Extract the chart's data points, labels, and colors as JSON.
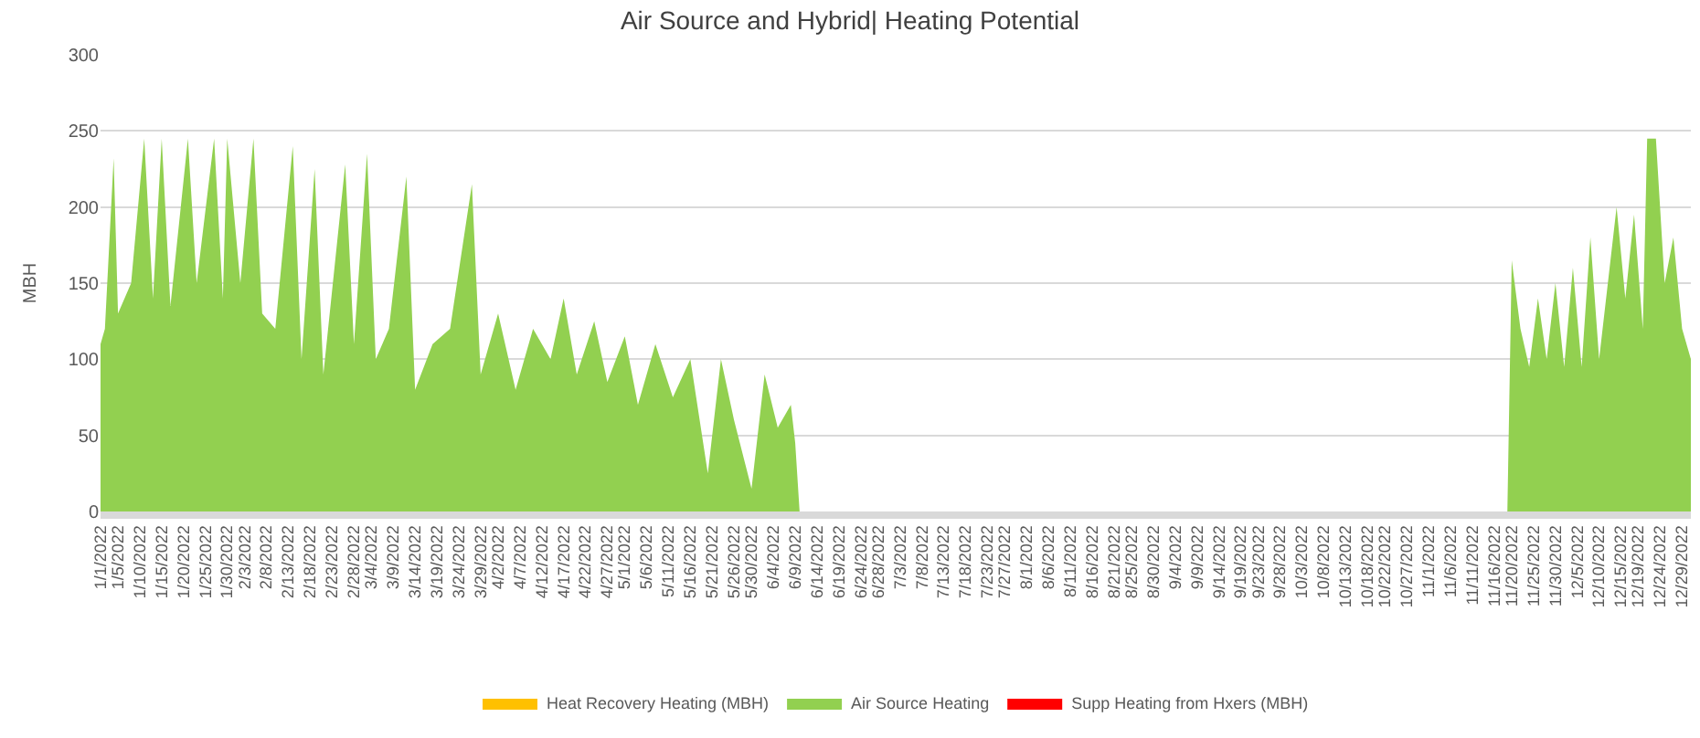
{
  "chart_data": {
    "type": "area",
    "title": "Air Source and Hybrid| Heating Potential",
    "ylabel": "MBH",
    "x": [
      "2022-01-01",
      "2022-01-02",
      "2022-01-04",
      "2022-01-05",
      "2022-01-08",
      "2022-01-11",
      "2022-01-13",
      "2022-01-15",
      "2022-01-17",
      "2022-01-21",
      "2022-01-23",
      "2022-01-27",
      "2022-01-29",
      "2022-01-30",
      "2022-02-02",
      "2022-02-05",
      "2022-02-07",
      "2022-02-10",
      "2022-02-14",
      "2022-02-16",
      "2022-02-19",
      "2022-02-21",
      "2022-02-26",
      "2022-02-28",
      "2022-03-03",
      "2022-03-05",
      "2022-03-08",
      "2022-03-12",
      "2022-03-14",
      "2022-03-18",
      "2022-03-22",
      "2022-03-27",
      "2022-03-29",
      "2022-04-02",
      "2022-04-06",
      "2022-04-10",
      "2022-04-14",
      "2022-04-17",
      "2022-04-20",
      "2022-04-24",
      "2022-04-27",
      "2022-05-01",
      "2022-05-04",
      "2022-05-08",
      "2022-05-12",
      "2022-05-16",
      "2022-05-20",
      "2022-05-23",
      "2022-05-26",
      "2022-05-30",
      "2022-06-02",
      "2022-06-05",
      "2022-06-08",
      "2022-06-09",
      "2022-06-10",
      "2022-11-19",
      "2022-11-20",
      "2022-11-22",
      "2022-11-24",
      "2022-11-26",
      "2022-11-28",
      "2022-11-30",
      "2022-12-02",
      "2022-12-04",
      "2022-12-06",
      "2022-12-08",
      "2022-12-10",
      "2022-12-12",
      "2022-12-14",
      "2022-12-16",
      "2022-12-18",
      "2022-12-20",
      "2022-12-21",
      "2022-12-23",
      "2022-12-25",
      "2022-12-27",
      "2022-12-29",
      "2022-12-31"
    ],
    "series": [
      {
        "name": "Heat Recovery Heating (MBH)",
        "color": "#ffc000",
        "values": [
          null,
          null,
          null,
          null,
          null,
          null,
          null,
          null,
          null,
          null,
          null,
          null,
          null,
          null,
          null,
          null,
          null,
          null,
          null,
          null,
          null,
          null,
          null,
          null,
          null,
          null,
          null,
          null,
          null,
          null,
          null,
          null,
          null,
          null,
          null,
          null,
          null,
          null,
          null,
          null,
          null,
          null,
          null,
          null,
          null,
          null,
          null,
          null,
          null,
          null,
          null,
          null,
          null,
          null,
          null,
          null,
          null,
          null,
          null,
          null,
          null,
          null,
          null,
          null,
          null,
          null,
          null,
          null,
          null,
          null,
          null,
          null,
          null,
          null,
          null,
          null,
          null,
          null
        ]
      },
      {
        "name": "Air Source Heating",
        "color": "#92d050",
        "values": [
          110,
          120,
          232,
          130,
          150,
          245,
          140,
          245,
          135,
          245,
          150,
          245,
          140,
          245,
          150,
          245,
          130,
          120,
          240,
          100,
          225,
          90,
          228,
          110,
          235,
          100,
          120,
          220,
          80,
          110,
          120,
          215,
          90,
          130,
          80,
          120,
          100,
          140,
          90,
          125,
          85,
          115,
          70,
          110,
          75,
          100,
          25,
          100,
          60,
          15,
          90,
          55,
          70,
          45,
          0,
          0,
          165,
          120,
          95,
          140,
          100,
          150,
          95,
          160,
          95,
          180,
          100,
          150,
          200,
          140,
          195,
          120,
          245,
          245,
          150,
          180,
          120,
          100
        ]
      },
      {
        "name": "Supp Heating from Hxers (MBH)",
        "color": "#ff0000",
        "values": [
          null,
          null,
          null,
          null,
          null,
          null,
          null,
          null,
          null,
          null,
          null,
          null,
          null,
          null,
          null,
          null,
          null,
          null,
          null,
          null,
          null,
          null,
          null,
          null,
          null,
          null,
          null,
          null,
          null,
          null,
          null,
          null,
          null,
          null,
          null,
          null,
          null,
          null,
          null,
          null,
          null,
          null,
          null,
          null,
          null,
          null,
          null,
          null,
          null,
          null,
          null,
          null,
          null,
          null,
          null,
          null,
          null,
          null,
          null,
          null,
          null,
          null,
          null,
          null,
          null,
          null,
          null,
          null,
          null,
          null,
          null,
          null,
          null,
          null,
          null,
          null,
          null,
          null
        ]
      }
    ],
    "ylim": [
      0,
      300
    ],
    "yticks": [
      0,
      50,
      100,
      150,
      200,
      250,
      300
    ],
    "grid": "y",
    "legend": "bottom",
    "xlim": [
      "2022-01-01",
      "2022-12-31"
    ],
    "xticks": [
      {
        "value": "2022-01-01",
        "label": "1/1/2022"
      },
      {
        "value": "2022-01-05",
        "label": "1/5/2022"
      },
      {
        "value": "2022-01-10",
        "label": "1/10/2022"
      },
      {
        "value": "2022-01-15",
        "label": "1/15/2022"
      },
      {
        "value": "2022-01-20",
        "label": "1/20/2022"
      },
      {
        "value": "2022-01-25",
        "label": "1/25/2022"
      },
      {
        "value": "2022-01-30",
        "label": "1/30/2022"
      },
      {
        "value": "2022-02-03",
        "label": "2/3/2022"
      },
      {
        "value": "2022-02-08",
        "label": "2/8/2022"
      },
      {
        "value": "2022-02-13",
        "label": "2/13/2022"
      },
      {
        "value": "2022-02-18",
        "label": "2/18/2022"
      },
      {
        "value": "2022-02-23",
        "label": "2/23/2022"
      },
      {
        "value": "2022-02-28",
        "label": "2/28/2022"
      },
      {
        "value": "2022-03-04",
        "label": "3/4/2022"
      },
      {
        "value": "2022-03-09",
        "label": "3/9/2022"
      },
      {
        "value": "2022-03-14",
        "label": "3/14/2022"
      },
      {
        "value": "2022-03-19",
        "label": "3/19/2022"
      },
      {
        "value": "2022-03-24",
        "label": "3/24/2022"
      },
      {
        "value": "2022-03-29",
        "label": "3/29/2022"
      },
      {
        "value": "2022-04-02",
        "label": "4/2/2022"
      },
      {
        "value": "2022-04-07",
        "label": "4/7/2022"
      },
      {
        "value": "2022-04-12",
        "label": "4/12/2022"
      },
      {
        "value": "2022-04-17",
        "label": "4/17/2022"
      },
      {
        "value": "2022-04-22",
        "label": "4/22/2022"
      },
      {
        "value": "2022-04-27",
        "label": "4/27/2022"
      },
      {
        "value": "2022-05-01",
        "label": "5/1/2022"
      },
      {
        "value": "2022-05-06",
        "label": "5/6/2022"
      },
      {
        "value": "2022-05-11",
        "label": "5/11/2022"
      },
      {
        "value": "2022-05-16",
        "label": "5/16/2022"
      },
      {
        "value": "2022-05-21",
        "label": "5/21/2022"
      },
      {
        "value": "2022-05-26",
        "label": "5/26/2022"
      },
      {
        "value": "2022-05-30",
        "label": "5/30/2022"
      },
      {
        "value": "2022-06-04",
        "label": "6/4/2022"
      },
      {
        "value": "2022-06-09",
        "label": "6/9/2022"
      },
      {
        "value": "2022-06-14",
        "label": "6/14/2022"
      },
      {
        "value": "2022-06-19",
        "label": "6/19/2022"
      },
      {
        "value": "2022-06-24",
        "label": "6/24/2022"
      },
      {
        "value": "2022-06-28",
        "label": "6/28/2022"
      },
      {
        "value": "2022-07-03",
        "label": "7/3/2022"
      },
      {
        "value": "2022-07-08",
        "label": "7/8/2022"
      },
      {
        "value": "2022-07-13",
        "label": "7/13/2022"
      },
      {
        "value": "2022-07-18",
        "label": "7/18/2022"
      },
      {
        "value": "2022-07-23",
        "label": "7/23/2022"
      },
      {
        "value": "2022-07-27",
        "label": "7/27/2022"
      },
      {
        "value": "2022-08-01",
        "label": "8/1/2022"
      },
      {
        "value": "2022-08-06",
        "label": "8/6/2022"
      },
      {
        "value": "2022-08-11",
        "label": "8/11/2022"
      },
      {
        "value": "2022-08-16",
        "label": "8/16/2022"
      },
      {
        "value": "2022-08-21",
        "label": "8/21/2022"
      },
      {
        "value": "2022-08-25",
        "label": "8/25/2022"
      },
      {
        "value": "2022-08-30",
        "label": "8/30/2022"
      },
      {
        "value": "2022-09-04",
        "label": "9/4/2022"
      },
      {
        "value": "2022-09-09",
        "label": "9/9/2022"
      },
      {
        "value": "2022-09-14",
        "label": "9/14/2022"
      },
      {
        "value": "2022-09-19",
        "label": "9/19/2022"
      },
      {
        "value": "2022-09-23",
        "label": "9/23/2022"
      },
      {
        "value": "2022-09-28",
        "label": "9/28/2022"
      },
      {
        "value": "2022-10-03",
        "label": "10/3/2022"
      },
      {
        "value": "2022-10-08",
        "label": "10/8/2022"
      },
      {
        "value": "2022-10-13",
        "label": "10/13/2022"
      },
      {
        "value": "2022-10-18",
        "label": "10/18/2022"
      },
      {
        "value": "2022-10-22",
        "label": "10/22/2022"
      },
      {
        "value": "2022-10-27",
        "label": "10/27/2022"
      },
      {
        "value": "2022-11-01",
        "label": "11/1/2022"
      },
      {
        "value": "2022-11-06",
        "label": "11/6/2022"
      },
      {
        "value": "2022-11-11",
        "label": "11/11/2022"
      },
      {
        "value": "2022-11-16",
        "label": "11/16/2022"
      },
      {
        "value": "2022-11-20",
        "label": "11/20/2022"
      },
      {
        "value": "2022-11-25",
        "label": "11/25/2022"
      },
      {
        "value": "2022-11-30",
        "label": "11/30/2022"
      },
      {
        "value": "2022-12-05",
        "label": "12/5/2022"
      },
      {
        "value": "2022-12-10",
        "label": "12/10/2022"
      },
      {
        "value": "2022-12-15",
        "label": "12/15/2022"
      },
      {
        "value": "2022-12-19",
        "label": "12/19/2022"
      },
      {
        "value": "2022-12-24",
        "label": "12/24/2022"
      },
      {
        "value": "2022-12-29",
        "label": "12/29/2022"
      }
    ]
  }
}
